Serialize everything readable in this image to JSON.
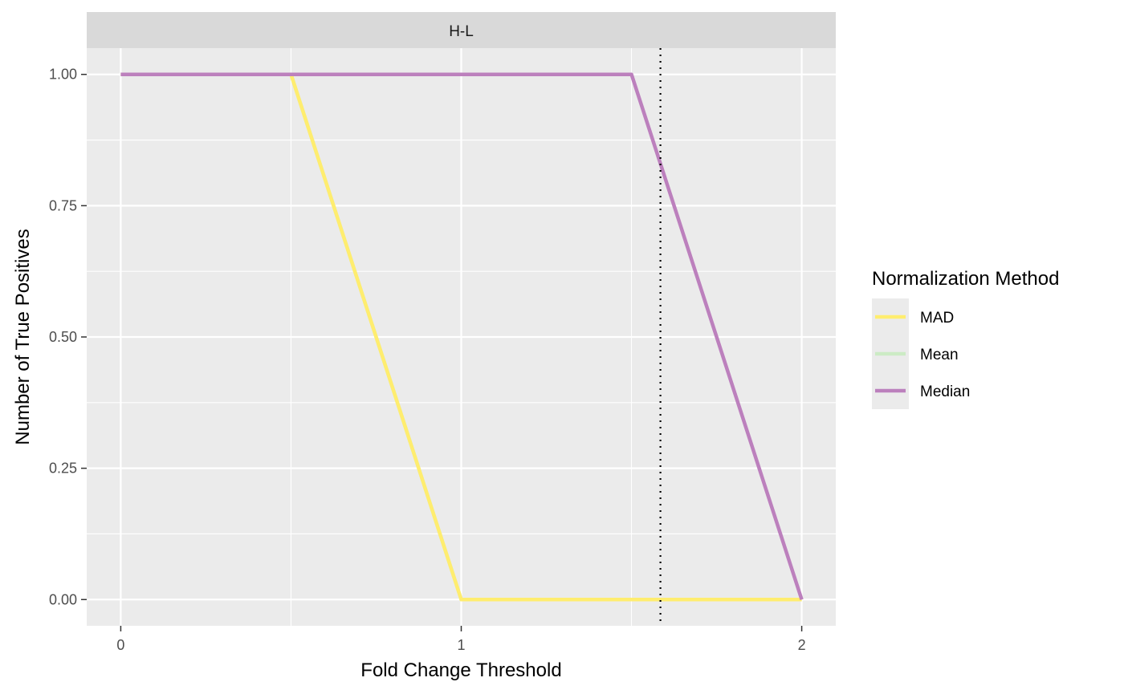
{
  "chart_data": {
    "type": "line",
    "facet_label": "H-L",
    "xlabel": "Fold Change Threshold",
    "ylabel": "Number of True Positives",
    "xlim": [
      -0.1,
      2.1
    ],
    "ylim": [
      -0.05,
      1.05
    ],
    "x_ticks": [
      0,
      1,
      2
    ],
    "x_tick_labels": [
      "0",
      "1",
      "2"
    ],
    "y_ticks": [
      0,
      0.25,
      0.5,
      0.75,
      1.0
    ],
    "y_tick_labels": [
      "0.00",
      "0.25",
      "0.50",
      "0.75",
      "1.00"
    ],
    "x_minor_ticks": [
      0.5,
      1.5
    ],
    "y_minor_ticks": [
      0.125,
      0.375,
      0.625,
      0.875
    ],
    "vline": {
      "x": 1.585,
      "style": "dotted",
      "color": "#000000"
    },
    "series": [
      {
        "name": "Mean",
        "color": "#CCEBC5",
        "x": [
          0,
          0.5,
          1,
          1.5,
          2
        ],
        "y": [
          1,
          1,
          0,
          0,
          0
        ]
      },
      {
        "name": "MAD",
        "color": "#FFED6F",
        "x": [
          0,
          0.5,
          1,
          1.5,
          2
        ],
        "y": [
          1,
          1,
          0,
          0,
          0
        ]
      },
      {
        "name": "Median",
        "color": "#BC80BD",
        "x": [
          0,
          0.5,
          1,
          1.5,
          2
        ],
        "y": [
          1,
          1,
          1,
          1,
          0
        ]
      }
    ],
    "legend": {
      "title": "Normalization Method",
      "position": "right",
      "items": [
        {
          "label": "MAD",
          "color": "#FFED6F"
        },
        {
          "label": "Mean",
          "color": "#CCEBC5"
        },
        {
          "label": "Median",
          "color": "#BC80BD"
        }
      ]
    },
    "grid": true,
    "panel_background": "#EBEBEB",
    "strip_background": "#D9D9D9"
  }
}
